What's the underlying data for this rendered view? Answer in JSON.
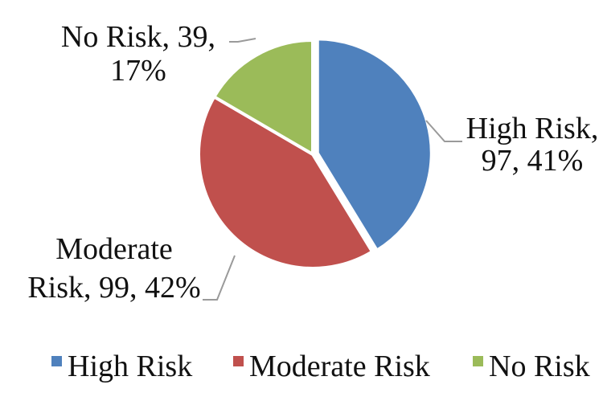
{
  "chart_data": {
    "type": "pie",
    "title": "",
    "slices": [
      {
        "name": "High Risk",
        "value": 97,
        "percent": "41%",
        "color": "#4f81bd",
        "label_lines": [
          "High Risk,",
          "97, 41%"
        ]
      },
      {
        "name": "Moderate Risk",
        "value": 99,
        "percent": "42%",
        "color": "#c0504d",
        "label_lines": [
          "Moderate",
          "Risk, 99, 42%"
        ]
      },
      {
        "name": "No Risk",
        "value": 39,
        "percent": "17%",
        "color": "#9bbb59",
        "label_lines": [
          "No Risk, 39,",
          "17%"
        ]
      }
    ],
    "legend": {
      "position": "bottom",
      "entries": [
        "High Risk",
        "Moderate Risk",
        "No Risk"
      ]
    }
  }
}
